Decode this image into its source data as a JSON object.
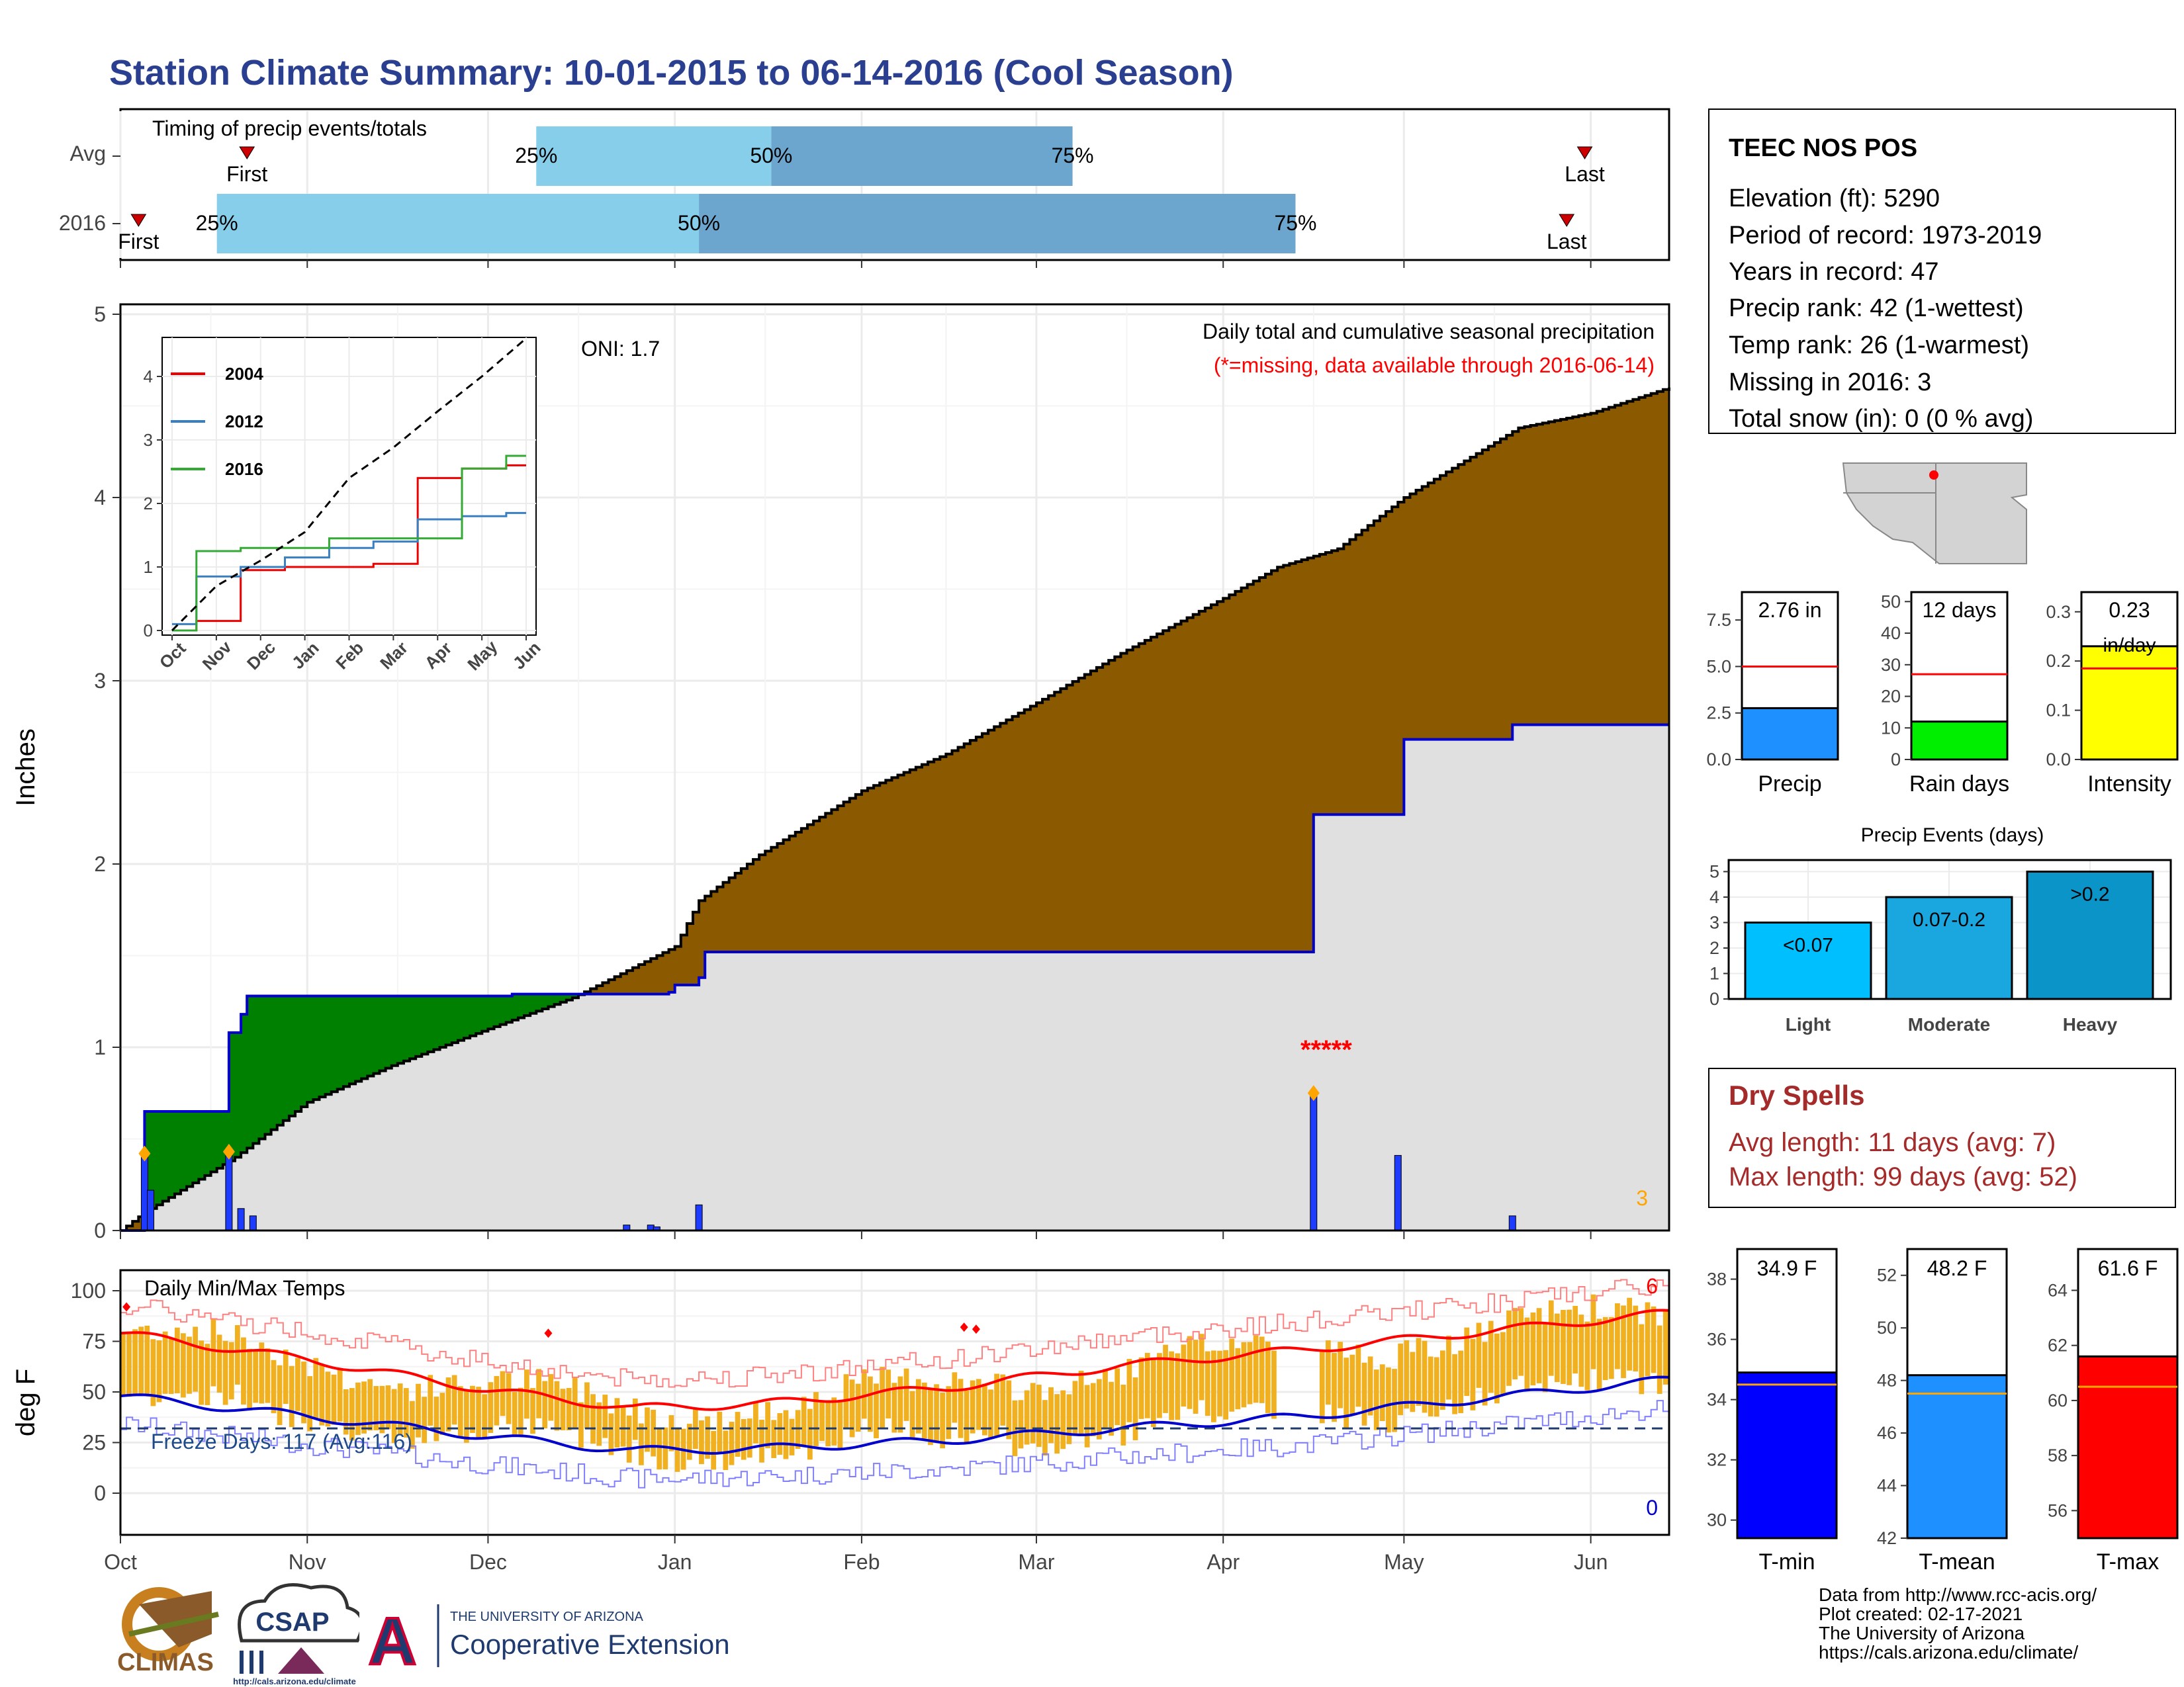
{
  "title": "Station Climate Summary: 10-01-2015 to 06-14-2016 (Cool Season)",
  "timing": {
    "title": "Timing of precip events/totals",
    "rows": [
      {
        "label": "Avg",
        "first_label": "First",
        "last_label": "Last",
        "first": "2015-10-22",
        "q25": "2015-12-09",
        "q50": "2016-01-17",
        "q75": "2016-03-07",
        "last": "2016-05-31"
      },
      {
        "label": "2016",
        "first_label": "First",
        "last_label": "Last",
        "first": "2015-10-04",
        "q25": "2015-10-17",
        "q50": "2016-01-05",
        "q75": "2016-04-13",
        "last": "2016-05-28"
      }
    ],
    "q_labels": [
      "25%",
      "50%",
      "75%"
    ],
    "colors": {
      "light": "#87ceeb",
      "dark": "#6ca5cd",
      "marker": "#cc0000"
    }
  },
  "station": {
    "name": "TEEC NOS POS",
    "lines": [
      "Elevation (ft): 5290",
      "Period of record: 1973-2019",
      "Years in record: 47",
      "Precip rank: 42 (1-wettest)",
      "Temp rank: 26 (1-warmest)",
      "Missing in 2016: 3",
      "Total snow (in): 0 (0 % avg)"
    ]
  },
  "precip_chart": {
    "ylabel": "Inches",
    "y_ticks": [
      "0",
      "1",
      "2",
      "3",
      "4",
      "5"
    ],
    "ylim": [
      0,
      5
    ],
    "oni": "ONI: 1.7",
    "caption": "Daily total and cumulative seasonal precipitation",
    "missing_note": "(*=missing, data available through 2016-06-14)",
    "missing_count": "3",
    "missing_marks": "*****",
    "colors": {
      "avg_fill": "#8b5a00",
      "obs_fill": "#e0e0e0",
      "green": "#008000",
      "obs_line": "#0000cc",
      "daily_bar": "#1e3cff",
      "diamond": "#ffa500",
      "missing": "#ff0000"
    }
  },
  "chart_data": [
    {
      "type": "area",
      "title": "Daily total and cumulative seasonal precipitation",
      "ylabel": "Inches",
      "ylim": [
        0,
        5
      ],
      "series": [
        {
          "name": "Avg cumulative",
          "x": [
            "2015-10-01",
            "2015-10-05",
            "2015-10-10",
            "2015-10-20",
            "2015-11-01",
            "2015-11-15",
            "2015-12-01",
            "2015-12-15",
            "2016-01-01",
            "2016-01-05",
            "2016-01-15",
            "2016-02-01",
            "2016-02-15",
            "2016-03-01",
            "2016-03-15",
            "2016-04-01",
            "2016-04-10",
            "2016-04-20",
            "2016-05-01",
            "2016-05-10",
            "2016-05-20",
            "2016-06-01",
            "2016-06-14"
          ],
          "values": [
            0.0,
            0.1,
            0.2,
            0.4,
            0.7,
            0.9,
            1.1,
            1.27,
            1.55,
            1.8,
            2.05,
            2.4,
            2.6,
            2.88,
            3.15,
            3.45,
            3.62,
            3.72,
            4.0,
            4.18,
            4.38,
            4.46,
            4.6
          ]
        },
        {
          "name": "2016 cumulative",
          "x": [
            "2015-10-01",
            "2015-10-03",
            "2015-10-05",
            "2015-10-18",
            "2015-10-19",
            "2015-10-21",
            "2015-10-22",
            "2015-11-01",
            "2015-12-01",
            "2015-12-05",
            "2015-12-31",
            "2016-01-01",
            "2016-01-05",
            "2016-01-06",
            "2016-03-15",
            "2016-04-15",
            "2016-04-16",
            "2016-04-30",
            "2016-05-01",
            "2016-05-19",
            "2016-06-14"
          ],
          "values": [
            0.0,
            0.0,
            0.65,
            0.65,
            1.08,
            1.18,
            1.28,
            1.28,
            1.28,
            1.29,
            1.3,
            1.34,
            1.38,
            1.52,
            1.52,
            1.52,
            2.27,
            2.27,
            2.68,
            2.76,
            2.76
          ]
        },
        {
          "name": "Daily precip",
          "x": [
            "2015-10-05",
            "2015-10-06",
            "2015-10-19",
            "2015-10-21",
            "2015-10-23",
            "2015-12-24",
            "2015-12-28",
            "2015-12-29",
            "2016-01-05",
            "2016-04-16",
            "2016-04-30",
            "2016-05-19"
          ],
          "values": [
            0.42,
            0.22,
            0.43,
            0.12,
            0.08,
            0.03,
            0.03,
            0.02,
            0.14,
            0.75,
            0.41,
            0.08
          ]
        }
      ]
    },
    {
      "type": "line",
      "title": "",
      "x": [
        "Oct",
        "Nov",
        "Dec",
        "Jan",
        "Feb",
        "Mar",
        "Apr",
        "May",
        "Jun"
      ],
      "ylim": [
        0,
        4.5
      ],
      "series": [
        {
          "name": "2004",
          "values": [
            0.0,
            0.15,
            0.95,
            1.0,
            1.0,
            1.05,
            2.4,
            2.55,
            2.6
          ]
        },
        {
          "name": "2012",
          "values": [
            0.1,
            0.85,
            1.0,
            1.15,
            1.3,
            1.4,
            1.75,
            1.8,
            1.85
          ]
        },
        {
          "name": "2016",
          "values": [
            0.0,
            1.25,
            1.3,
            1.3,
            1.45,
            1.45,
            1.45,
            2.55,
            2.75
          ]
        },
        {
          "name": "Avg",
          "values": [
            0.0,
            0.7,
            1.1,
            1.55,
            2.4,
            2.88,
            3.45,
            4.0,
            4.6
          ]
        }
      ]
    },
    {
      "type": "line",
      "title": "Daily Min/Max Temps",
      "ylabel": "deg F",
      "ylim": [
        -20,
        105
      ],
      "series": [
        {
          "name": "Avg max",
          "x": [
            "2015-10-01",
            "2015-11-01",
            "2015-12-01",
            "2015-12-25",
            "2016-01-15",
            "2016-02-15",
            "2016-03-15",
            "2016-04-15",
            "2016-05-15",
            "2016-06-14"
          ],
          "values": [
            79,
            66,
            51,
            42,
            44,
            52,
            63,
            71,
            80,
            89
          ]
        },
        {
          "name": "Avg min",
          "x": [
            "2015-10-01",
            "2015-11-01",
            "2015-12-01",
            "2015-12-25",
            "2016-01-15",
            "2016-02-15",
            "2016-03-15",
            "2016-04-15",
            "2016-05-15",
            "2016-06-14"
          ],
          "values": [
            48,
            38,
            28,
            21,
            22,
            26,
            32,
            38,
            47,
            56
          ]
        }
      ]
    },
    {
      "type": "bar",
      "title": "",
      "categories": [
        "Precip",
        "Rain days",
        "Intensity"
      ],
      "values": [
        2.76,
        12,
        0.23
      ]
    },
    {
      "type": "bar",
      "title": "Precip Events (days)",
      "categories": [
        "Light",
        "Moderate",
        "Heavy"
      ],
      "values": [
        3,
        4,
        5
      ],
      "ylim": [
        0,
        5
      ]
    },
    {
      "type": "bar",
      "title": "",
      "categories": [
        "T-min",
        "T-mean",
        "T-max"
      ],
      "values": [
        34.9,
        48.2,
        61.6
      ]
    }
  ],
  "temp_chart": {
    "title": "Daily Min/Max Temps",
    "ylabel": "deg F",
    "y_ticks": [
      "0",
      "25",
      "50",
      "75",
      "100"
    ],
    "freeze": "Freeze Days: 117 (Avg:116)",
    "count_hi": "6",
    "count_lo": "0",
    "x_ticks": [
      "Oct",
      "Nov",
      "Dec",
      "Jan",
      "Feb",
      "Mar",
      "Apr",
      "May",
      "Jun"
    ],
    "colors": {
      "bar": "#f0b020",
      "max": "#ff0000",
      "min": "#0000cc",
      "freeze": "#1e3a6e"
    }
  },
  "inset": {
    "legend": [
      "2004",
      "2012",
      "2016"
    ],
    "legend_colors": [
      "#ee0000",
      "#3a7fc0",
      "#33aa33"
    ],
    "y_ticks": [
      "0",
      "1",
      "2",
      "3",
      "4"
    ],
    "x_ticks": [
      "Oct",
      "Nov",
      "Dec",
      "Jan",
      "Feb",
      "Mar",
      "Apr",
      "May",
      "Jun"
    ]
  },
  "mini_bars": [
    {
      "label": "Precip",
      "value_text": "2.76 in",
      "y_ticks": [
        "0.0",
        "2.5",
        "5.0",
        "7.5"
      ],
      "color": "#1e90ff"
    },
    {
      "label": "Rain days",
      "value_text": "12 days",
      "y_ticks": [
        "0",
        "10",
        "20",
        "30",
        "40",
        "50"
      ],
      "color": "#00ee00"
    },
    {
      "label": "Intensity",
      "value_text": "0.23",
      "value_text2": "in/day",
      "y_ticks": [
        "0.0",
        "0.1",
        "0.2",
        "0.3"
      ],
      "color": "#ffff00"
    }
  ],
  "events": {
    "title": "Precip Events (days)",
    "y_ticks": [
      "0",
      "1",
      "2",
      "3",
      "4",
      "5"
    ],
    "bars": [
      {
        "label": "Light",
        "text": "<0.07",
        "color": "#00bfff"
      },
      {
        "label": "Moderate",
        "text": "0.07-0.2",
        "color": "#1aa7e0"
      },
      {
        "label": "Heavy",
        "text": ">0.2",
        "color": "#0a94c8"
      }
    ]
  },
  "dry_spells": {
    "title": "Dry Spells",
    "avg": "Avg length: 11 days (avg: 7)",
    "max": "Max length: 99 days (avg: 52)",
    "color": "#a52a2a"
  },
  "temp_bars": [
    {
      "label": "T-min",
      "value_text": "34.9 F",
      "y_ticks": [
        "30",
        "32",
        "34",
        "36",
        "38"
      ],
      "color": "#0000ff"
    },
    {
      "label": "T-mean",
      "value_text": "48.2 F",
      "y_ticks": [
        "42",
        "44",
        "46",
        "48",
        "50",
        "52"
      ],
      "color": "#1e90ff"
    },
    {
      "label": "T-max",
      "value_text": "61.6 F",
      "y_ticks": [
        "56",
        "58",
        "60",
        "62",
        "64"
      ],
      "color": "#ff0000"
    }
  ],
  "footer": {
    "credits": [
      "Data from http://www.rcc-acis.org/",
      "Plot created: 02-17-2021",
      "The University of Arizona",
      "https://cals.arizona.edu/climate/"
    ],
    "climas": "CLIMAS",
    "csap": "CSAP",
    "csap_url": "http://cals.arizona.edu/climate",
    "ua_small": "THE UNIVERSITY OF ARIZONA",
    "ua_big": "Cooperative Extension",
    "ua_letter": "A"
  }
}
